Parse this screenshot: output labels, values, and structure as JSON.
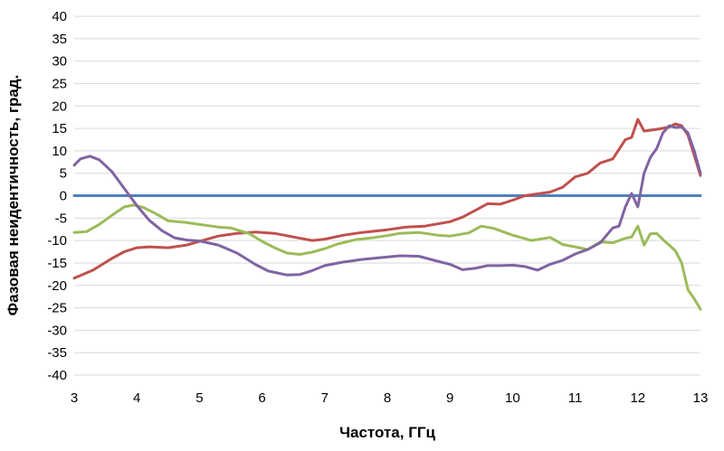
{
  "chart_data": {
    "type": "line",
    "title": "",
    "xlabel": "Частота, ГГц",
    "ylabel": "Фазовая неидентичность, град.",
    "xlim": [
      3,
      13
    ],
    "ylim": [
      -40,
      40
    ],
    "xticks": [
      3,
      4,
      5,
      6,
      7,
      8,
      9,
      10,
      11,
      12,
      13
    ],
    "yticks": [
      -40,
      -35,
      -30,
      -25,
      -20,
      -15,
      -10,
      -5,
      0,
      5,
      10,
      15,
      20,
      25,
      30,
      35,
      40
    ],
    "grid": "horizontal",
    "legend": "none",
    "series": [
      {
        "color": "#4F81BD",
        "points": [
          [
            3,
            0
          ],
          [
            13,
            0
          ]
        ]
      },
      {
        "color": "#C0504D",
        "points": [
          [
            3,
            -18.4
          ],
          [
            3.3,
            -16.6
          ],
          [
            3.6,
            -14.0
          ],
          [
            3.8,
            -12.5
          ],
          [
            4.0,
            -11.6
          ],
          [
            4.2,
            -11.4
          ],
          [
            4.5,
            -11.6
          ],
          [
            4.8,
            -11.0
          ],
          [
            5.0,
            -10.2
          ],
          [
            5.3,
            -9.0
          ],
          [
            5.6,
            -8.4
          ],
          [
            5.9,
            -8.1
          ],
          [
            6.2,
            -8.4
          ],
          [
            6.5,
            -9.2
          ],
          [
            6.8,
            -10.0
          ],
          [
            7.0,
            -9.7
          ],
          [
            7.3,
            -8.8
          ],
          [
            7.6,
            -8.2
          ],
          [
            8.0,
            -7.6
          ],
          [
            8.3,
            -7.0
          ],
          [
            8.6,
            -6.8
          ],
          [
            9.0,
            -5.8
          ],
          [
            9.2,
            -4.8
          ],
          [
            9.4,
            -3.3
          ],
          [
            9.6,
            -1.8
          ],
          [
            9.8,
            -1.9
          ],
          [
            10.0,
            -1.0
          ],
          [
            10.2,
            0.0
          ],
          [
            10.4,
            0.4
          ],
          [
            10.6,
            0.8
          ],
          [
            10.8,
            1.9
          ],
          [
            11.0,
            4.2
          ],
          [
            11.2,
            5.0
          ],
          [
            11.4,
            7.3
          ],
          [
            11.6,
            8.2
          ],
          [
            11.8,
            12.5
          ],
          [
            11.9,
            13.0
          ],
          [
            12.0,
            17.0
          ],
          [
            12.1,
            14.4
          ],
          [
            12.3,
            14.8
          ],
          [
            12.5,
            15.3
          ],
          [
            12.6,
            16.0
          ],
          [
            12.7,
            15.6
          ],
          [
            12.8,
            13.5
          ],
          [
            12.9,
            9.0
          ],
          [
            13.0,
            4.5
          ]
        ]
      },
      {
        "color": "#9BBB59",
        "points": [
          [
            3,
            -8.2
          ],
          [
            3.2,
            -8.0
          ],
          [
            3.4,
            -6.4
          ],
          [
            3.6,
            -4.4
          ],
          [
            3.8,
            -2.5
          ],
          [
            3.95,
            -2.1
          ],
          [
            4.1,
            -2.6
          ],
          [
            4.3,
            -4.0
          ],
          [
            4.5,
            -5.6
          ],
          [
            4.8,
            -6.0
          ],
          [
            5.0,
            -6.4
          ],
          [
            5.3,
            -7.0
          ],
          [
            5.5,
            -7.2
          ],
          [
            5.8,
            -8.5
          ],
          [
            6.0,
            -10.2
          ],
          [
            6.2,
            -11.6
          ],
          [
            6.4,
            -12.8
          ],
          [
            6.6,
            -13.1
          ],
          [
            6.8,
            -12.6
          ],
          [
            7.0,
            -11.8
          ],
          [
            7.2,
            -10.8
          ],
          [
            7.5,
            -9.8
          ],
          [
            7.8,
            -9.3
          ],
          [
            8.0,
            -8.9
          ],
          [
            8.2,
            -8.4
          ],
          [
            8.5,
            -8.2
          ],
          [
            8.8,
            -8.8
          ],
          [
            9.0,
            -9.0
          ],
          [
            9.3,
            -8.3
          ],
          [
            9.5,
            -6.8
          ],
          [
            9.7,
            -7.3
          ],
          [
            10.0,
            -8.8
          ],
          [
            10.3,
            -10.0
          ],
          [
            10.6,
            -9.3
          ],
          [
            10.8,
            -10.9
          ],
          [
            11.0,
            -11.4
          ],
          [
            11.2,
            -12.0
          ],
          [
            11.4,
            -10.3
          ],
          [
            11.6,
            -10.5
          ],
          [
            11.8,
            -9.5
          ],
          [
            11.9,
            -9.2
          ],
          [
            12.0,
            -6.8
          ],
          [
            12.1,
            -11.0
          ],
          [
            12.2,
            -8.5
          ],
          [
            12.3,
            -8.4
          ],
          [
            12.4,
            -9.8
          ],
          [
            12.5,
            -11.0
          ],
          [
            12.6,
            -12.3
          ],
          [
            12.7,
            -15.0
          ],
          [
            12.8,
            -21.0
          ],
          [
            12.9,
            -23.0
          ],
          [
            13.0,
            -25.3
          ]
        ]
      },
      {
        "color": "#8064A2",
        "points": [
          [
            3,
            6.8
          ],
          [
            3.1,
            8.2
          ],
          [
            3.25,
            8.8
          ],
          [
            3.4,
            8.0
          ],
          [
            3.6,
            5.4
          ],
          [
            3.8,
            1.6
          ],
          [
            4.0,
            -2.2
          ],
          [
            4.2,
            -5.5
          ],
          [
            4.4,
            -7.8
          ],
          [
            4.6,
            -9.4
          ],
          [
            4.8,
            -9.9
          ],
          [
            5.0,
            -10.1
          ],
          [
            5.3,
            -11.0
          ],
          [
            5.6,
            -12.8
          ],
          [
            5.9,
            -15.4
          ],
          [
            6.1,
            -16.8
          ],
          [
            6.4,
            -17.7
          ],
          [
            6.6,
            -17.6
          ],
          [
            6.8,
            -16.7
          ],
          [
            7.0,
            -15.6
          ],
          [
            7.3,
            -14.8
          ],
          [
            7.6,
            -14.2
          ],
          [
            7.9,
            -13.8
          ],
          [
            8.2,
            -13.4
          ],
          [
            8.5,
            -13.5
          ],
          [
            8.8,
            -14.6
          ],
          [
            9.0,
            -15.3
          ],
          [
            9.2,
            -16.5
          ],
          [
            9.4,
            -16.2
          ],
          [
            9.6,
            -15.6
          ],
          [
            9.8,
            -15.6
          ],
          [
            10.0,
            -15.5
          ],
          [
            10.2,
            -15.8
          ],
          [
            10.4,
            -16.6
          ],
          [
            10.6,
            -15.3
          ],
          [
            10.8,
            -14.4
          ],
          [
            11.0,
            -13.0
          ],
          [
            11.2,
            -12.0
          ],
          [
            11.4,
            -10.5
          ],
          [
            11.6,
            -7.2
          ],
          [
            11.7,
            -6.8
          ],
          [
            11.8,
            -2.5
          ],
          [
            11.9,
            0.5
          ],
          [
            12.0,
            -2.5
          ],
          [
            12.1,
            5.0
          ],
          [
            12.2,
            8.5
          ],
          [
            12.3,
            10.5
          ],
          [
            12.4,
            14.0
          ],
          [
            12.5,
            15.6
          ],
          [
            12.6,
            15.2
          ],
          [
            12.7,
            15.3
          ],
          [
            12.8,
            14.0
          ],
          [
            12.9,
            10.0
          ],
          [
            13.0,
            5.0
          ]
        ]
      }
    ]
  }
}
